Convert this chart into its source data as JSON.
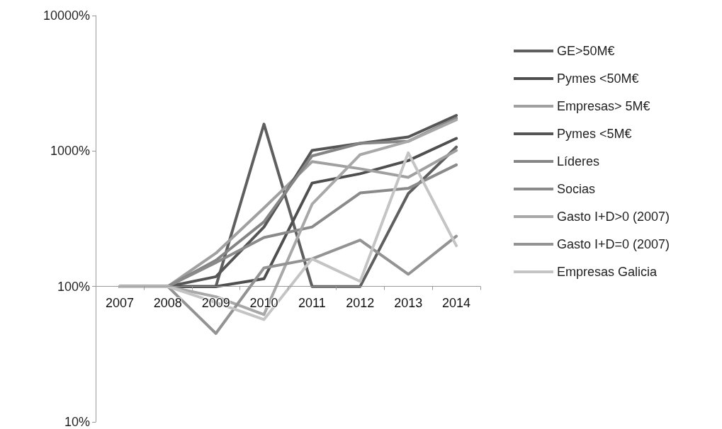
{
  "chart_data": {
    "type": "line",
    "categories": [
      "2007",
      "2008",
      "2009",
      "2010",
      "2011",
      "2012",
      "2013",
      "2014"
    ],
    "log": "y",
    "ylim": [
      10,
      10000
    ],
    "yticks": [
      {
        "value": 10,
        "label": "10%"
      },
      {
        "value": 100,
        "label": "100%"
      },
      {
        "value": 1000,
        "label": "1000%"
      },
      {
        "value": 10000,
        "label": "10000%"
      }
    ],
    "grid": false,
    "legend": "right",
    "marker": "none",
    "line_style": "solid",
    "series": [
      {
        "name": "GE>50M€",
        "color": "#5f5f5f",
        "values": [
          100,
          100,
          100,
          1580,
          100,
          100,
          485,
          1070
        ]
      },
      {
        "name": "Pymes <50M€",
        "color": "#4f4f4f",
        "values": [
          100,
          100,
          100,
          114,
          580,
          680,
          850,
          1240
        ]
      },
      {
        "name": "Empresas> 5M€",
        "color": "#a0a0a0",
        "values": [
          100,
          100,
          176,
          380,
          835,
          740,
          640,
          1010
        ]
      },
      {
        "name": "Pymes <5M€",
        "color": "#555555",
        "values": [
          100,
          100,
          118,
          275,
          1010,
          1140,
          1270,
          1830
        ]
      },
      {
        "name": "Líderes",
        "color": "#858585",
        "values": [
          100,
          100,
          156,
          300,
          920,
          1140,
          1180,
          1750
        ]
      },
      {
        "name": "Socias",
        "color": "#8a8a8a",
        "values": [
          100,
          100,
          150,
          230,
          275,
          490,
          530,
          790
        ]
      },
      {
        "name": "Gasto I+D>0 (2007)",
        "color": "#a8a8a8",
        "values": [
          100,
          100,
          84,
          62,
          405,
          940,
          1180,
          1700
        ]
      },
      {
        "name": "Gasto I+D=0 (2007)",
        "color": "#939393",
        "values": [
          100,
          100,
          45,
          137,
          160,
          220,
          123,
          235
        ]
      },
      {
        "name": "Empresas Galicia",
        "color": "#c4c4c4",
        "values": [
          100,
          100,
          76,
          57,
          160,
          109,
          970,
          200
        ]
      }
    ]
  }
}
